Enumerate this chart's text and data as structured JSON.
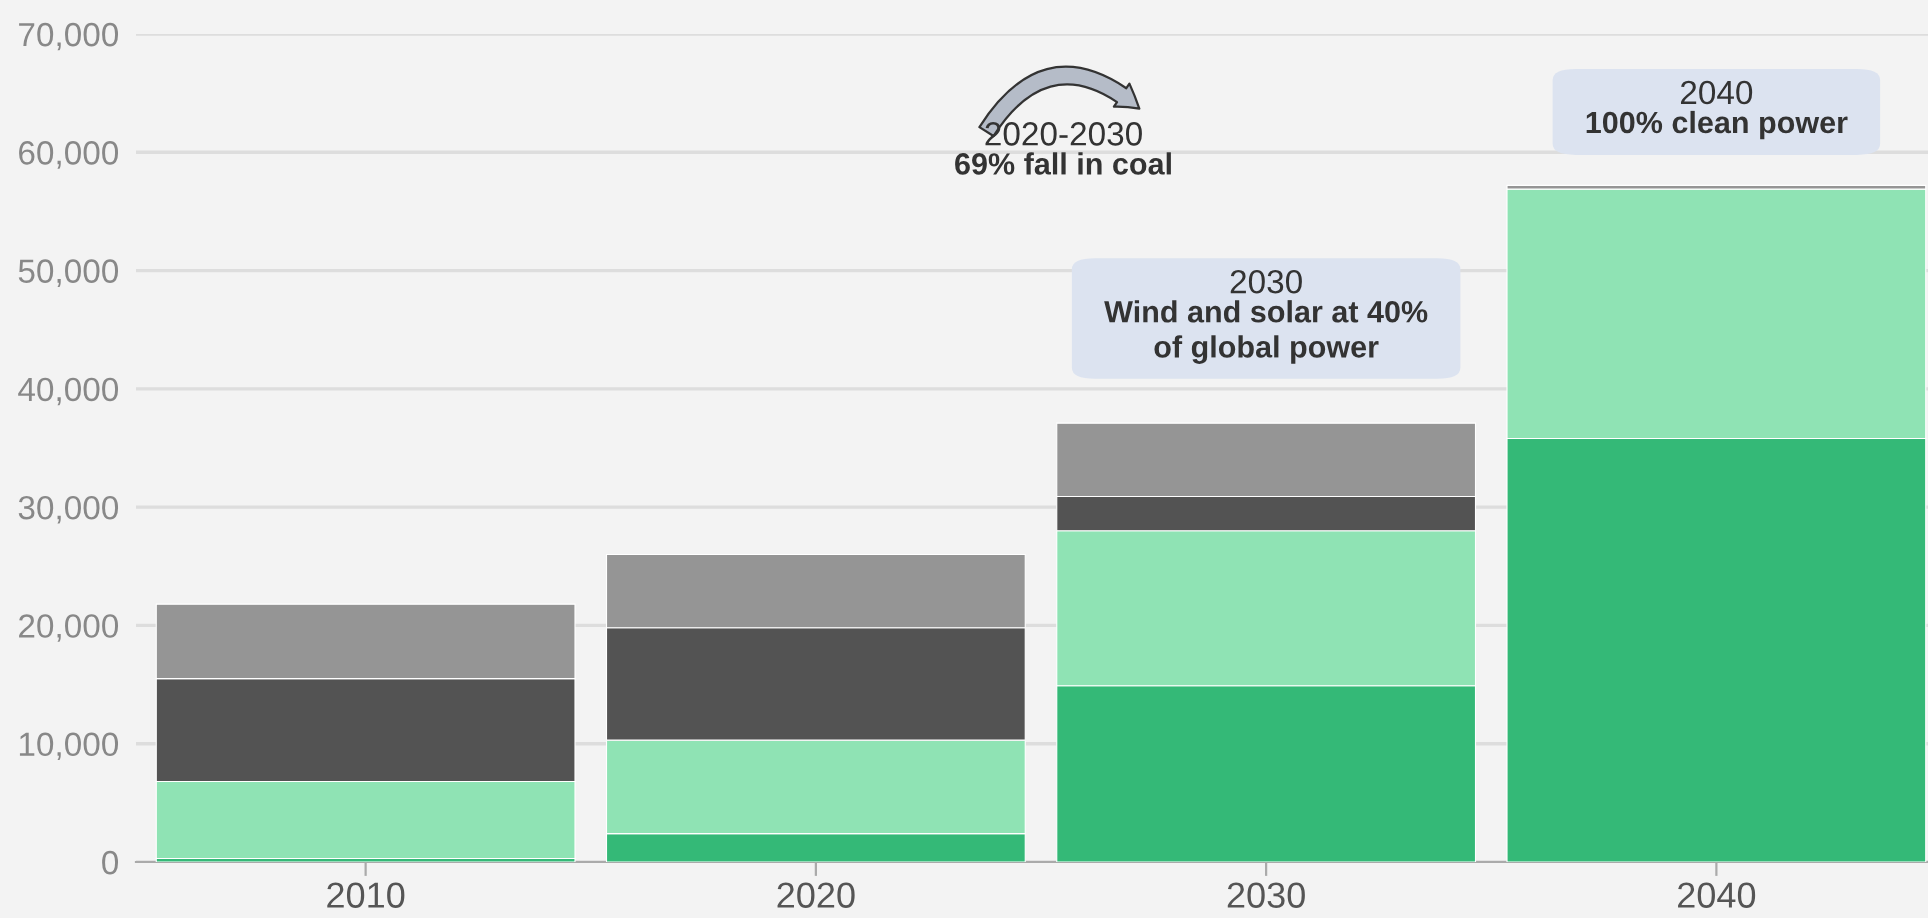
{
  "chart_data": {
    "type": "bar",
    "stacked": true,
    "categories": [
      "2010",
      "2020",
      "2030",
      "2040"
    ],
    "series": [
      {
        "color": "#34b977",
        "values": [
          300,
          2400,
          14900,
          35800
        ]
      },
      {
        "color": "#8fe3b4",
        "values": [
          6500,
          7900,
          13100,
          21100
        ]
      },
      {
        "color": "#535353",
        "values": [
          8700,
          9500,
          2900,
          0
        ]
      },
      {
        "color": "#959595",
        "values": [
          6300,
          6200,
          6200,
          300
        ]
      }
    ],
    "ylim": [
      0,
      70000
    ],
    "yticks": [
      {
        "value": 0,
        "label": "0"
      },
      {
        "value": 10000,
        "label": "10,000"
      },
      {
        "value": 20000,
        "label": "20,000"
      },
      {
        "value": 30000,
        "label": "30,000"
      },
      {
        "value": 40000,
        "label": "40,000"
      },
      {
        "value": 50000,
        "label": "50,000"
      },
      {
        "value": 60000,
        "label": "60,000"
      },
      {
        "value": 70000,
        "label": "70,000"
      }
    ],
    "grid": "y",
    "legend": false,
    "annotations": [
      "2020-2030",
      "69% fall in coal",
      "2030",
      "Wind and solar at 40%\nof global power",
      "2040",
      "100% clean power"
    ]
  }
}
